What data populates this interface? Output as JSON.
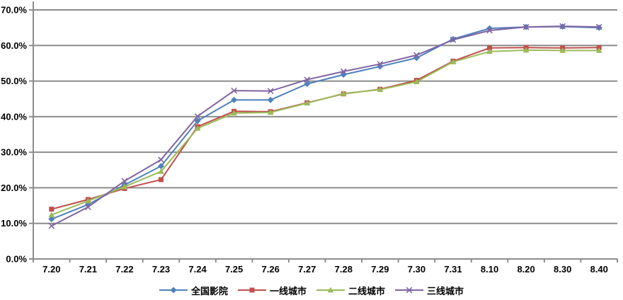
{
  "chart_data": {
    "type": "line",
    "title": "",
    "xlabel": "",
    "ylabel": "",
    "grid": true,
    "legend_position": "bottom",
    "axis_color": "#8c8c8c",
    "text_color": "#000000",
    "background_color": "#ffffff",
    "categories": [
      "7.20",
      "7.21",
      "7.22",
      "7.23",
      "7.24",
      "7.25",
      "7.26",
      "7.27",
      "7.28",
      "7.29",
      "7.30",
      "7.31",
      "8.10",
      "8.20",
      "8.30",
      "8.40"
    ],
    "y_axis": {
      "min": 0,
      "max": 70,
      "step": 10,
      "tick_labels": [
        "0.0%",
        "10.0%",
        "20.0%",
        "30.0%",
        "40.0%",
        "50.0%",
        "60.0%",
        "70.0%"
      ]
    },
    "series": [
      {
        "name": "全国影院",
        "color": "#4F81BD",
        "marker": "diamond",
        "values": [
          11.2,
          15.3,
          20.8,
          26.1,
          38.8,
          44.7,
          44.7,
          49.2,
          51.8,
          54.1,
          56.5,
          61.8,
          64.8,
          65.2,
          65.3,
          65.0
        ]
      },
      {
        "name": "一线城市",
        "color": "#C0504D",
        "marker": "square",
        "values": [
          14.0,
          16.7,
          19.8,
          22.3,
          37.2,
          41.5,
          41.4,
          43.9,
          46.4,
          47.7,
          50.2,
          55.6,
          59.3,
          59.4,
          59.3,
          59.4
        ]
      },
      {
        "name": "二线城市",
        "color": "#9BBB59",
        "marker": "triangle",
        "values": [
          12.4,
          16.3,
          20.3,
          24.6,
          36.7,
          41.0,
          41.2,
          43.8,
          46.5,
          47.6,
          49.8,
          55.4,
          58.3,
          58.7,
          58.6,
          58.6
        ]
      },
      {
        "name": "三线城市",
        "color": "#8064A2",
        "marker": "x",
        "values": [
          9.3,
          14.6,
          21.9,
          27.9,
          40.1,
          47.3,
          47.2,
          50.4,
          52.7,
          54.8,
          57.3,
          61.6,
          64.2,
          65.2,
          65.4,
          65.2
        ]
      }
    ]
  }
}
